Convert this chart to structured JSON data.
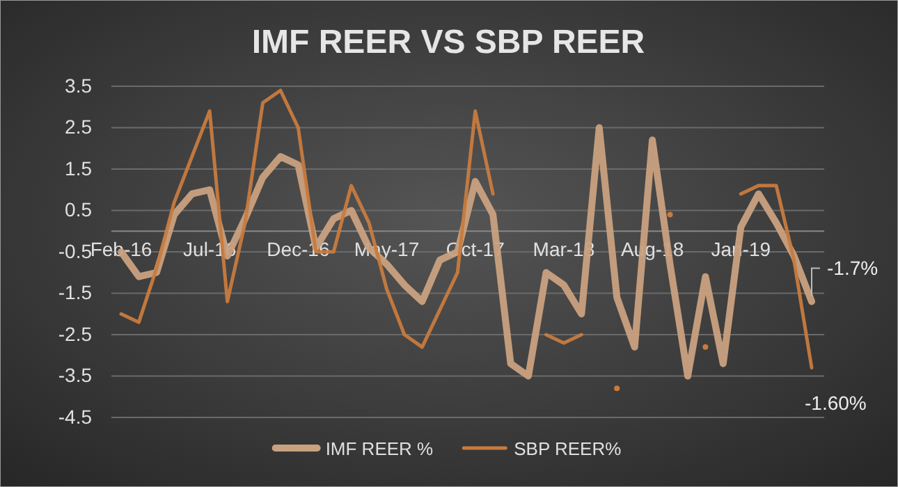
{
  "chart_data": {
    "type": "line",
    "title": "IMF REER VS SBP REER",
    "categories": [
      "Feb-16",
      null,
      null,
      null,
      null,
      "Jul-16",
      null,
      null,
      null,
      null,
      "Dec-16",
      null,
      null,
      null,
      null,
      "May-17",
      null,
      null,
      null,
      null,
      "Oct-17",
      null,
      null,
      null,
      null,
      "Mar-18",
      null,
      null,
      null,
      null,
      "Aug-18",
      null,
      null,
      null,
      null,
      "Jan-19",
      null,
      null,
      null,
      null
    ],
    "series": [
      {
        "name": "IMF REER %",
        "color": "#c9a17f",
        "values": [
          -0.5,
          -1.1,
          -1.0,
          0.4,
          0.9,
          1.0,
          -0.6,
          0.3,
          1.3,
          1.8,
          1.6,
          -0.4,
          0.3,
          0.5,
          -0.4,
          -0.8,
          -1.3,
          -1.7,
          -0.7,
          -0.5,
          1.2,
          0.4,
          -3.2,
          -3.5,
          -1.0,
          -1.3,
          -2.0,
          2.5,
          -1.6,
          -2.8,
          2.2,
          -0.8,
          -3.5,
          -1.1,
          -3.2,
          0.1,
          0.9,
          0.2,
          -0.6,
          -1.7
        ],
        "value_labels": [
          null,
          null,
          null,
          null,
          null,
          null,
          null,
          null,
          null,
          null,
          null,
          null,
          null,
          null,
          null,
          null,
          null,
          null,
          null,
          null,
          null,
          null,
          null,
          null,
          null,
          null,
          null,
          null,
          null,
          null,
          null,
          null,
          null,
          null,
          null,
          null,
          null,
          null,
          null,
          "-1.7%"
        ]
      },
      {
        "name": "SBP REER%",
        "color": "#c77b3f",
        "values": [
          -2.0,
          -2.2,
          -0.9,
          0.7,
          1.8,
          2.9,
          -1.7,
          0.2,
          3.1,
          3.4,
          2.5,
          -0.5,
          -0.5,
          1.1,
          0.2,
          -1.4,
          -2.5,
          -2.8,
          -1.9,
          -1.0,
          2.9,
          0.9,
          null,
          null,
          -2.5,
          -2.7,
          -2.5,
          null,
          -3.8,
          null,
          null,
          0.4,
          null,
          -2.8,
          null,
          0.9,
          1.1,
          1.1,
          -0.7,
          -3.3
        ]
      }
    ],
    "ylim": [
      -4.5,
      3.5
    ],
    "yticks": [
      -4.5,
      -3.5,
      -2.5,
      -1.5,
      -0.5,
      0.5,
      1.5,
      2.5,
      3.5
    ],
    "grid": "y",
    "legend": "bottom",
    "annotations": [
      "-1.60%"
    ]
  }
}
